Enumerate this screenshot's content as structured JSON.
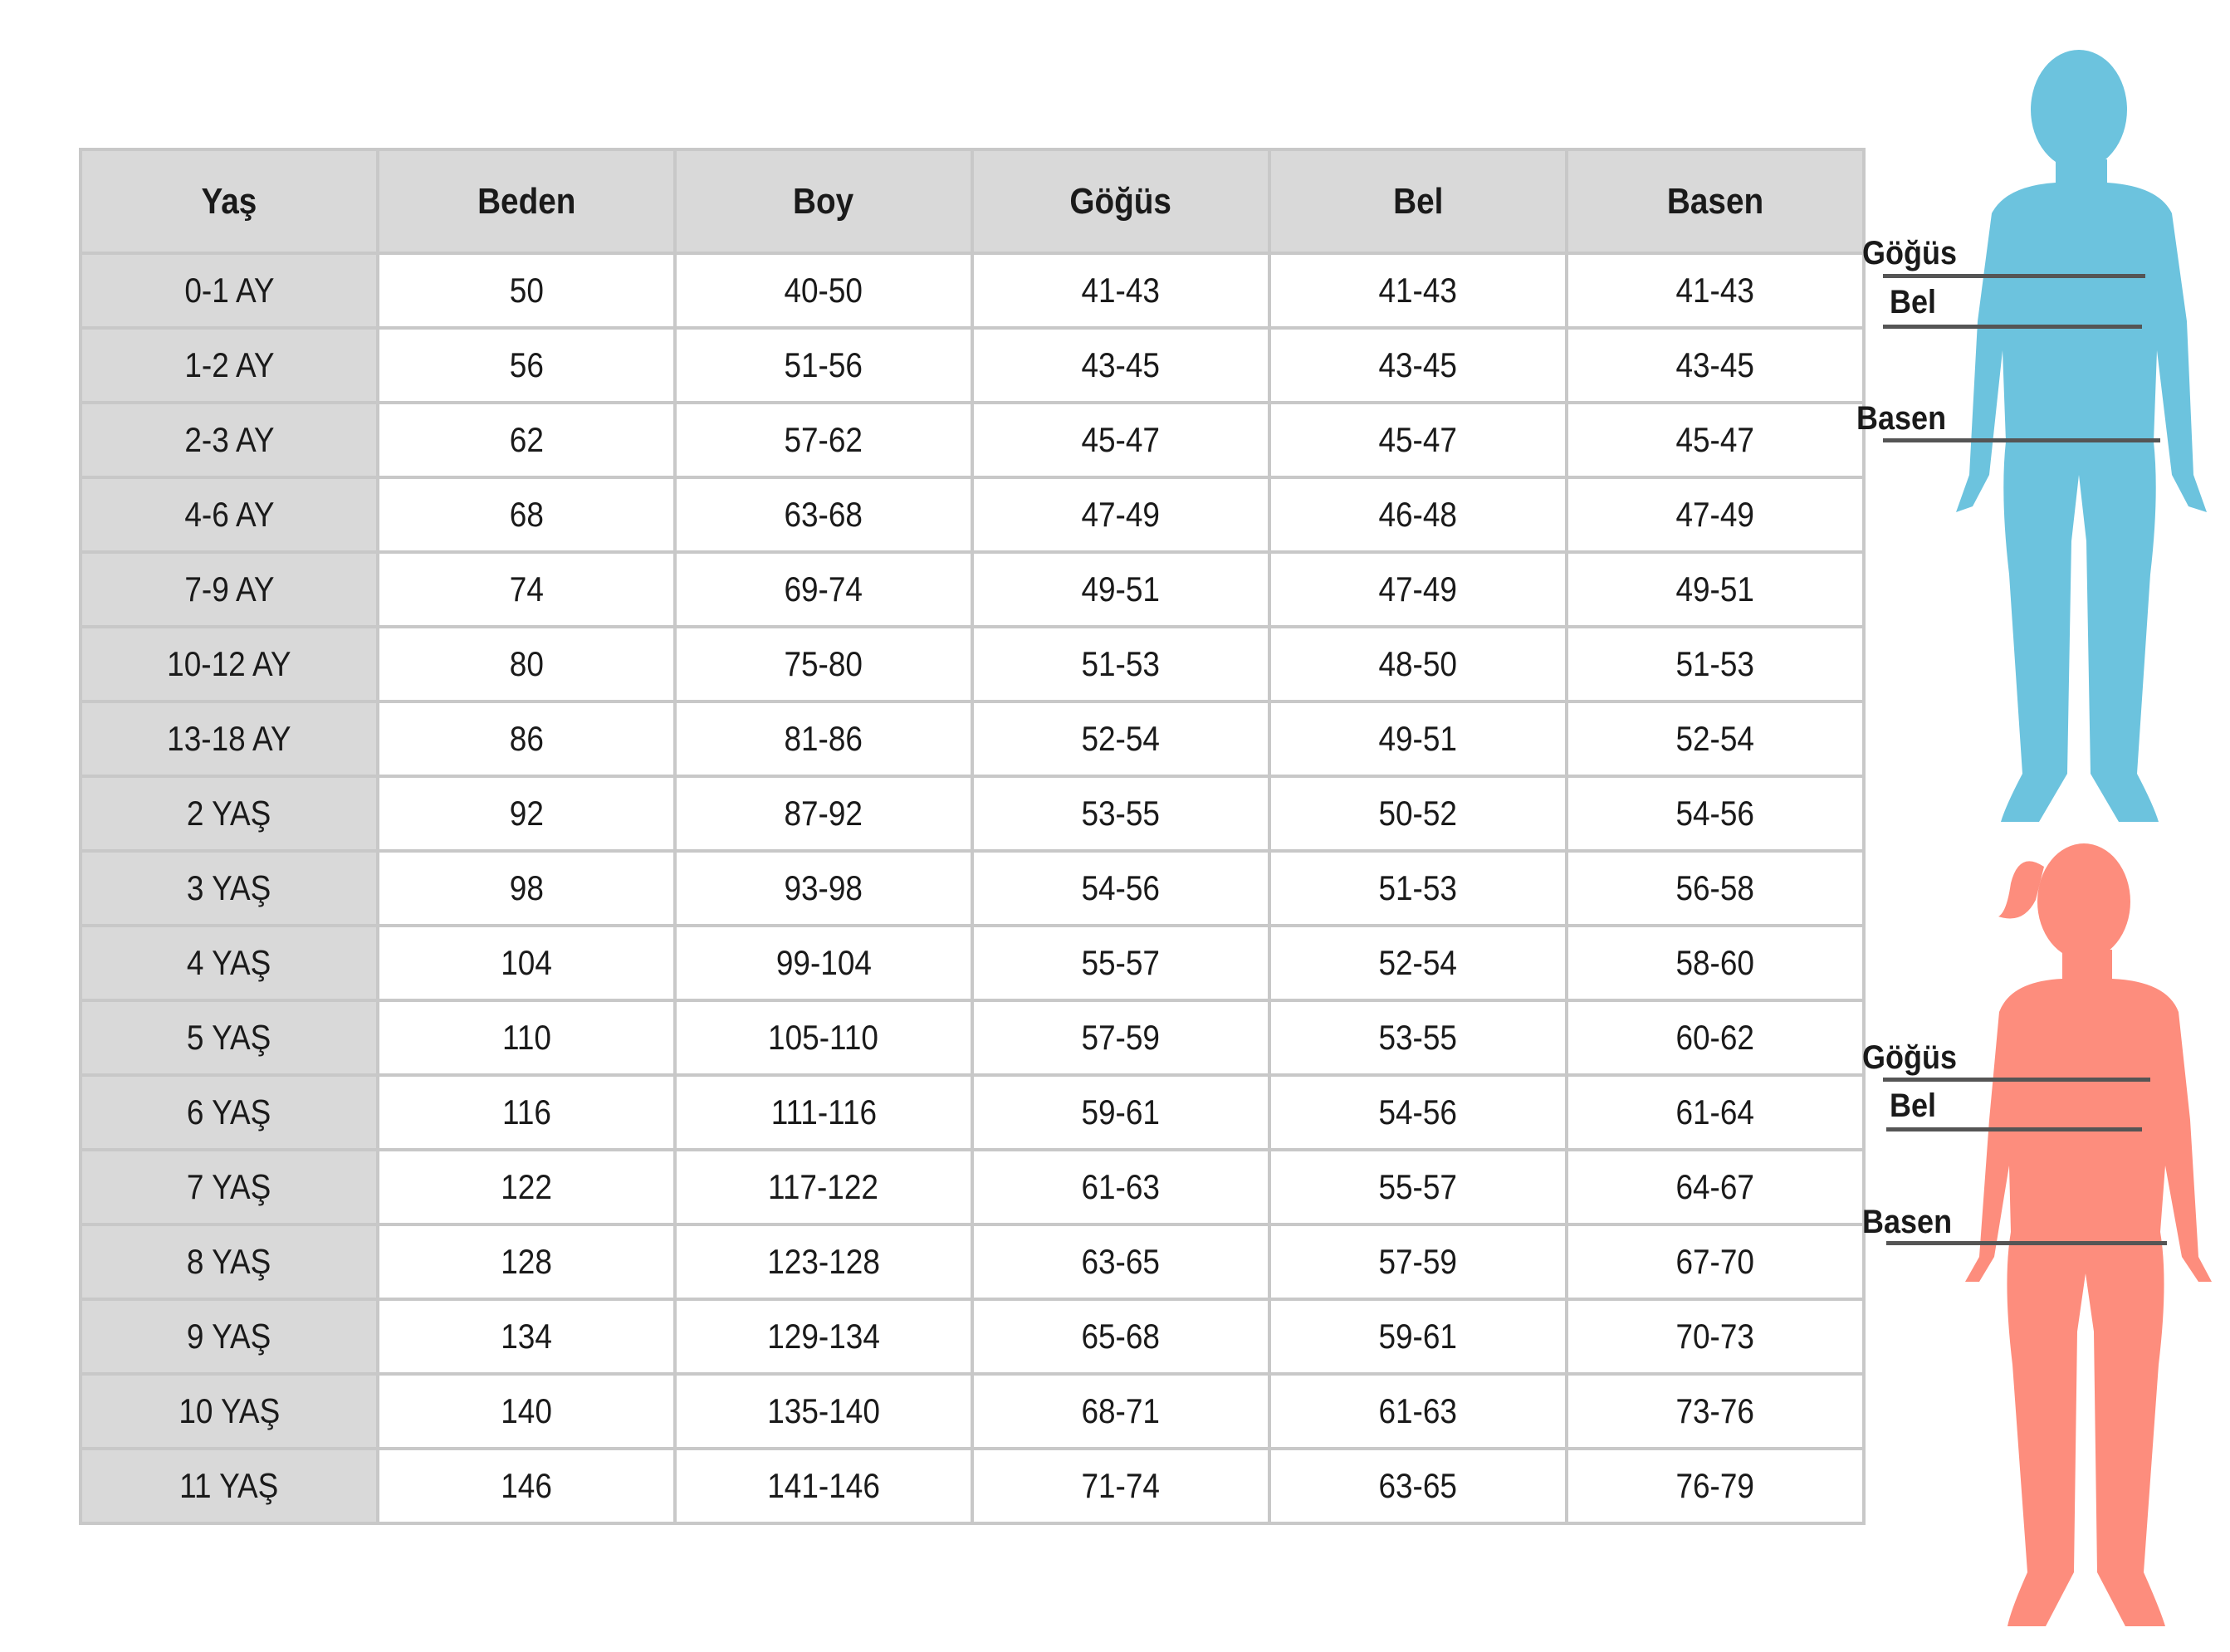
{
  "table": {
    "headers": [
      "Yaş",
      "Beden",
      "Boy",
      "Göğüs",
      "Bel",
      "Basen"
    ],
    "rows": [
      [
        "0-1 AY",
        "50",
        "40-50",
        "41-43",
        "41-43",
        "41-43"
      ],
      [
        "1-2 AY",
        "56",
        "51-56",
        "43-45",
        "43-45",
        "43-45"
      ],
      [
        "2-3 AY",
        "62",
        "57-62",
        "45-47",
        "45-47",
        "45-47"
      ],
      [
        "4-6 AY",
        "68",
        "63-68",
        "47-49",
        "46-48",
        "47-49"
      ],
      [
        "7-9 AY",
        "74",
        "69-74",
        "49-51",
        "47-49",
        "49-51"
      ],
      [
        "10-12 AY",
        "80",
        "75-80",
        "51-53",
        "48-50",
        "51-53"
      ],
      [
        "13-18 AY",
        "86",
        "81-86",
        "52-54",
        "49-51",
        "52-54"
      ],
      [
        "2 YAŞ",
        "92",
        "87-92",
        "53-55",
        "50-52",
        "54-56"
      ],
      [
        "3 YAŞ",
        "98",
        "93-98",
        "54-56",
        "51-53",
        "56-58"
      ],
      [
        "4 YAŞ",
        "104",
        "99-104",
        "55-57",
        "52-54",
        "58-60"
      ],
      [
        "5 YAŞ",
        "110",
        "105-110",
        "57-59",
        "53-55",
        "60-62"
      ],
      [
        "6 YAŞ",
        "116",
        "111-116",
        "59-61",
        "54-56",
        "61-64"
      ],
      [
        "7 YAŞ",
        "122",
        "117-122",
        "61-63",
        "55-57",
        "64-67"
      ],
      [
        "8 YAŞ",
        "128",
        "123-128",
        "63-65",
        "57-59",
        "67-70"
      ],
      [
        "9 YAŞ",
        "134",
        "129-134",
        "65-68",
        "59-61",
        "70-73"
      ],
      [
        "10 YAŞ",
        "140",
        "135-140",
        "68-71",
        "61-63",
        "73-76"
      ],
      [
        "11 YAŞ",
        "146",
        "141-146",
        "71-74",
        "63-65",
        "76-79"
      ]
    ]
  },
  "figures": {
    "boy": {
      "color": "#6cc3de",
      "labels": {
        "chest": "Göğüs",
        "waist": "Bel",
        "hip": "Basen"
      }
    },
    "girl": {
      "color": "#fd8d7d",
      "labels": {
        "chest": "Göğüs",
        "waist": "Bel",
        "hip": "Basen"
      }
    }
  }
}
